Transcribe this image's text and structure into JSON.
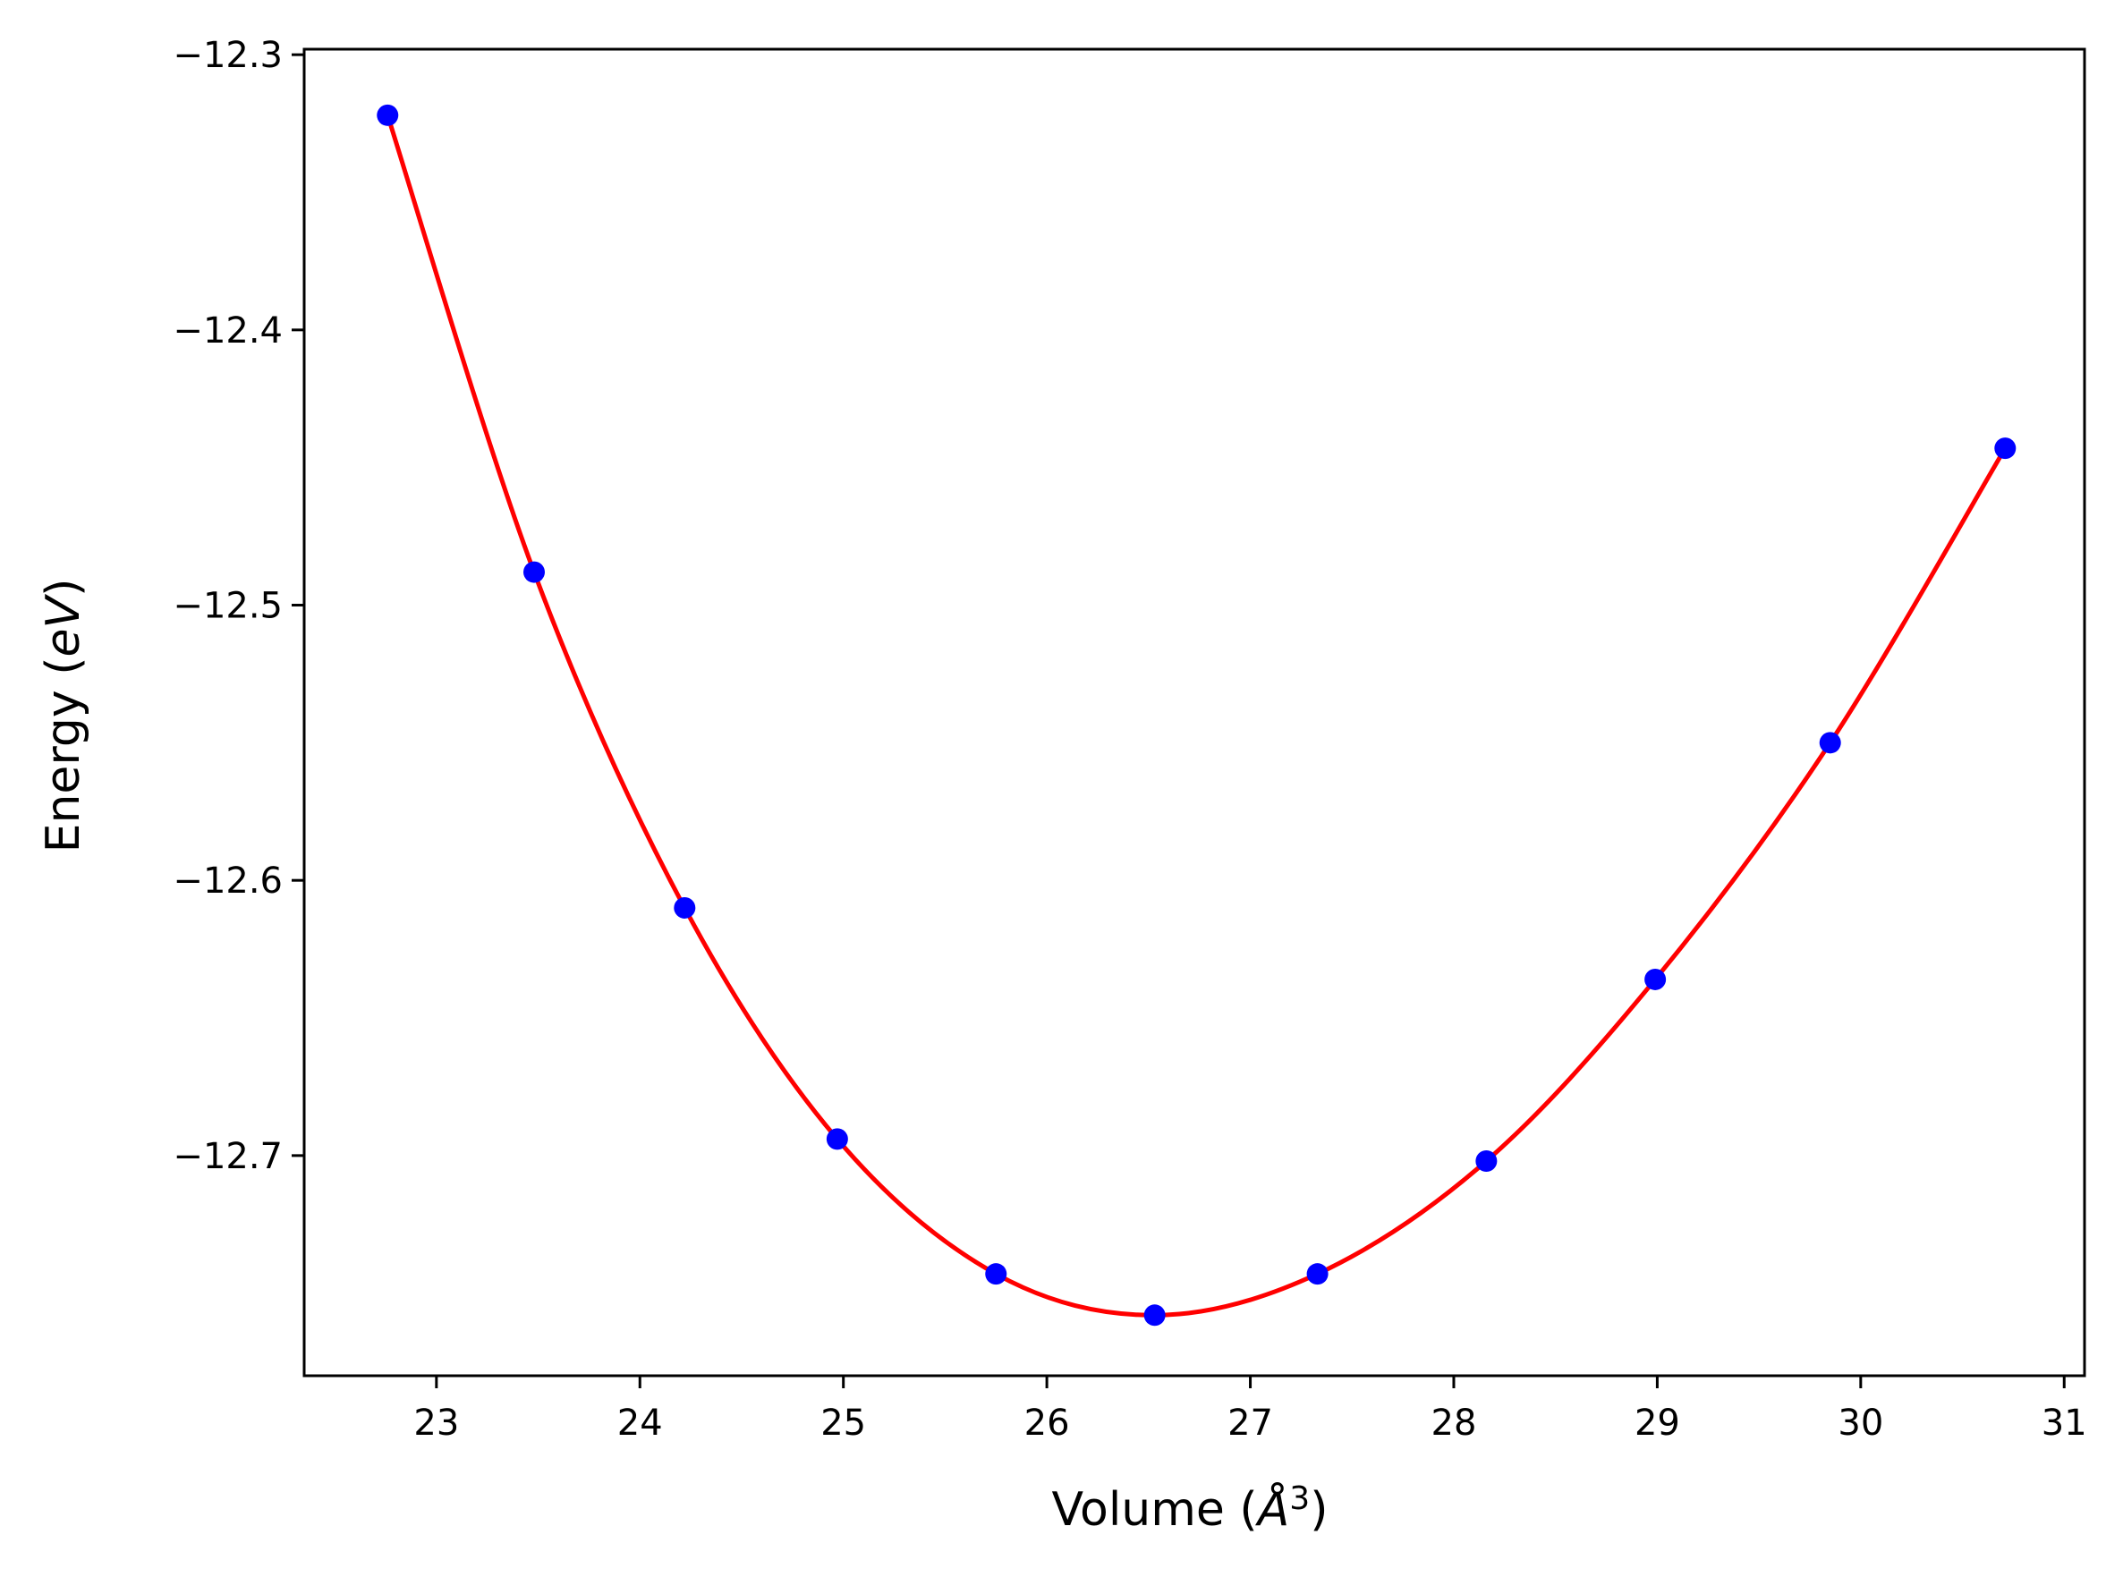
{
  "chart_data": {
    "type": "scatter",
    "xlabel_prefix": "Volume (",
    "xlabel_symbol": "Å",
    "xlabel_power": "3",
    "xlabel_suffix": ")",
    "ylabel_prefix": "Energy (",
    "ylabel_unit": "eV",
    "ylabel_suffix": ")",
    "xlim": [
      22.35,
      31.1
    ],
    "ylim": [
      -12.78,
      -12.298
    ],
    "xticks": [
      23,
      24,
      25,
      26,
      27,
      28,
      29,
      30,
      31
    ],
    "yticks": [
      -12.3,
      -12.4,
      -12.5,
      -12.6,
      -12.7
    ],
    "xtick_labels": [
      "23",
      "24",
      "25",
      "26",
      "27",
      "28",
      "29",
      "30",
      "31"
    ],
    "ytick_labels": [
      "−12.3",
      "−12.4",
      "−12.5",
      "−12.6",
      "−12.7"
    ],
    "series": [
      {
        "style": "points",
        "color": "#0000ff",
        "x": [
          22.76,
          23.48,
          24.22,
          24.97,
          25.75,
          26.53,
          27.33,
          28.16,
          28.99,
          29.85,
          30.71
        ],
        "y": [
          -12.322,
          -12.488,
          -12.61,
          -12.694,
          -12.743,
          -12.758,
          -12.743,
          -12.702,
          -12.636,
          -12.55,
          -12.443
        ]
      },
      {
        "style": "fit-line",
        "color": "#ff0000",
        "x": [
          22.76,
          23.48,
          24.22,
          24.97,
          25.75,
          26.53,
          27.33,
          28.16,
          28.99,
          29.85,
          30.71
        ],
        "y": [
          -12.322,
          -12.488,
          -12.61,
          -12.694,
          -12.743,
          -12.758,
          -12.743,
          -12.702,
          -12.636,
          -12.55,
          -12.443
        ]
      }
    ],
    "grid": false,
    "legend": "none"
  }
}
